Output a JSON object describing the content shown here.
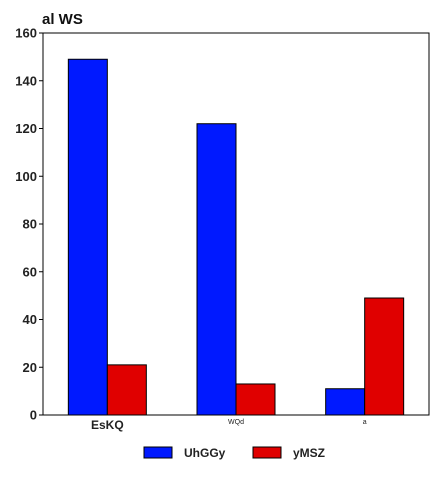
{
  "chart_data": {
    "type": "bar",
    "title": "al WS",
    "xlabel": "",
    "ylabel": "",
    "categories": [
      "EsKQ",
      "WQd",
      "a"
    ],
    "category_label_sizes": [
      "large",
      "small",
      "small"
    ],
    "series": [
      {
        "name": "UhGGy",
        "values": [
          149,
          122,
          11
        ],
        "color": "#0019ff"
      },
      {
        "name": "yMSZ",
        "values": [
          21,
          13,
          49
        ],
        "color": "#e00000"
      }
    ],
    "ylim": [
      0,
      160
    ],
    "yticks": [
      0,
      20,
      40,
      60,
      80,
      100,
      120,
      140,
      160
    ],
    "grid": false,
    "legend_position": "bottom-center"
  }
}
